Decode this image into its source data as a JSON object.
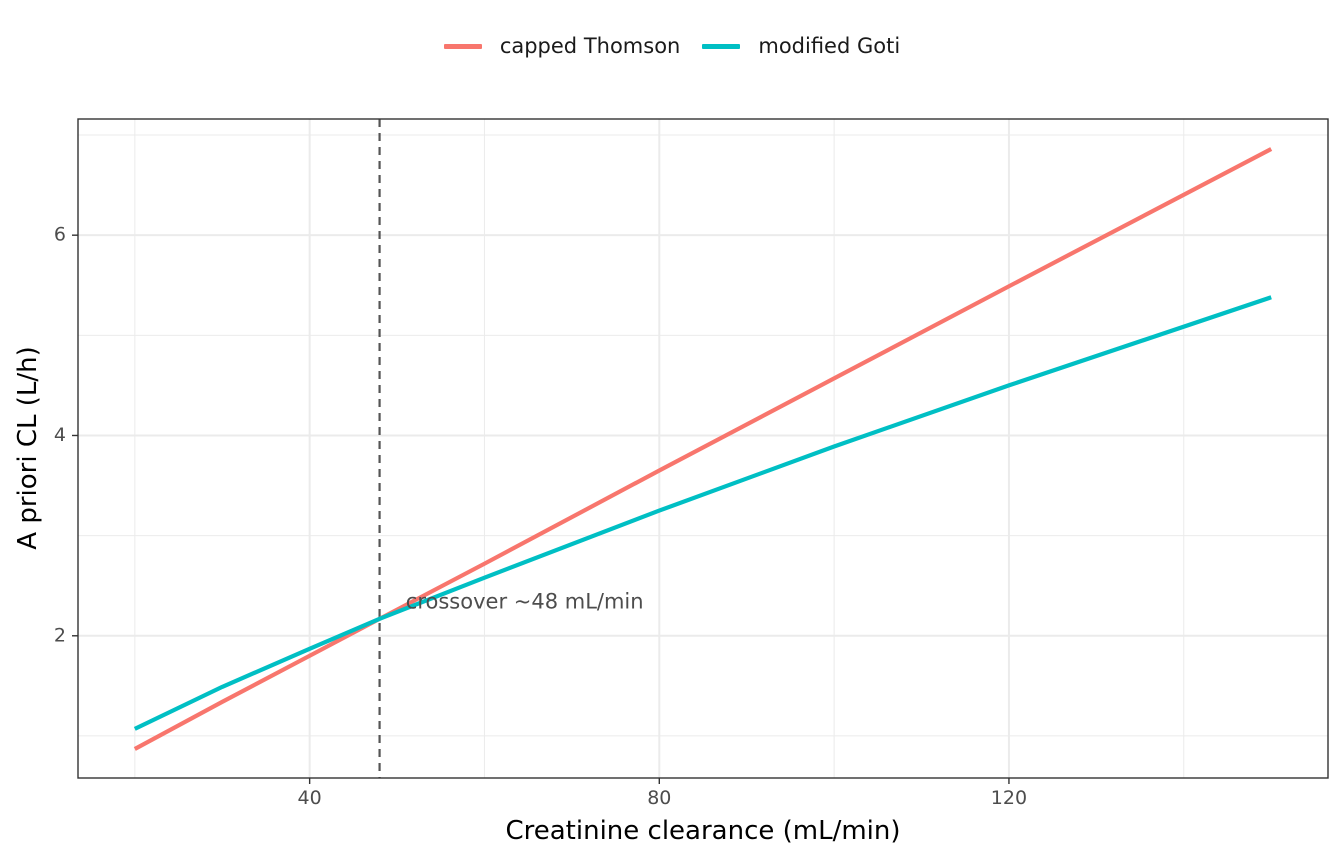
{
  "chart_data": {
    "type": "line",
    "xlabel": "Creatinine clearance (mL/min)",
    "ylabel": "A priori CL (L/h)",
    "xlim": [
      13.5,
      156.5
    ],
    "ylim": [
      0.58,
      7.16
    ],
    "x_ticks": [
      40,
      80,
      120
    ],
    "y_ticks": [
      2,
      4,
      6
    ],
    "x_minor_ticks": [
      20,
      60,
      100,
      140
    ],
    "y_minor_ticks": [
      1,
      3,
      5,
      7
    ],
    "grid": true,
    "legend_position": "top",
    "series": [
      {
        "name": "capped Thomson",
        "color": "#F8766D",
        "x": [
          20,
          30,
          40,
          48,
          60,
          80,
          100,
          120,
          150
        ],
        "y": [
          0.87,
          1.34,
          1.8,
          2.17,
          2.72,
          3.65,
          4.57,
          5.49,
          6.86
        ]
      },
      {
        "name": "modified Goti",
        "color": "#00BFC4",
        "x": [
          20,
          30,
          40,
          48,
          60,
          80,
          100,
          120,
          150
        ],
        "y": [
          1.07,
          1.49,
          1.87,
          2.17,
          2.58,
          3.25,
          3.89,
          4.5,
          5.38
        ]
      }
    ],
    "vline": {
      "x": 48,
      "color": "#555555",
      "style": "dashed"
    },
    "annotation": {
      "text": "crossover ~48 mL/min",
      "x": 51,
      "y": 2.33
    }
  }
}
